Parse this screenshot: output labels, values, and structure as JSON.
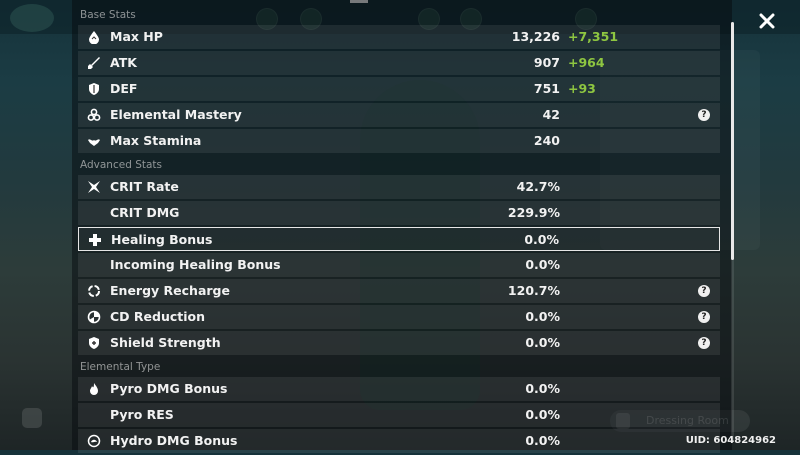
{
  "sections": [
    {
      "title": "Base Stats",
      "rows": [
        {
          "icon": "hp-drop-icon",
          "label": "Max HP",
          "value": "13,226",
          "bonus": "+7,351",
          "help": false
        },
        {
          "icon": "sword-icon",
          "label": "ATK",
          "value": "907",
          "bonus": "+964",
          "help": false
        },
        {
          "icon": "shield-icon",
          "label": "DEF",
          "value": "751",
          "bonus": "+93",
          "help": false
        },
        {
          "icon": "elemental-mastery-icon",
          "label": "Elemental Mastery",
          "value": "42",
          "bonus": "",
          "help": true
        },
        {
          "icon": "stamina-icon",
          "label": "Max Stamina",
          "value": "240",
          "bonus": "",
          "help": false
        }
      ]
    },
    {
      "title": "Advanced Stats",
      "rows": [
        {
          "icon": "crit-icon",
          "label": "CRIT Rate",
          "value": "42.7%",
          "bonus": "",
          "help": false
        },
        {
          "icon": "",
          "label": "CRIT DMG",
          "value": "229.9%",
          "bonus": "",
          "help": false
        },
        {
          "icon": "healing-cross-icon",
          "label": "Healing Bonus",
          "value": "0.0%",
          "bonus": "",
          "help": false,
          "selected": true
        },
        {
          "icon": "",
          "label": "Incoming Healing Bonus",
          "value": "0.0%",
          "bonus": "",
          "help": false
        },
        {
          "icon": "energy-recharge-icon",
          "label": "Energy Recharge",
          "value": "120.7%",
          "bonus": "",
          "help": true
        },
        {
          "icon": "cd-reduction-icon",
          "label": "CD Reduction",
          "value": "0.0%",
          "bonus": "",
          "help": true
        },
        {
          "icon": "shield-strength-icon",
          "label": "Shield Strength",
          "value": "0.0%",
          "bonus": "",
          "help": true
        }
      ]
    },
    {
      "title": "Elemental Type",
      "rows": [
        {
          "icon": "pyro-icon",
          "label": "Pyro DMG Bonus",
          "value": "0.0%",
          "bonus": "",
          "help": false
        },
        {
          "icon": "",
          "label": "Pyro RES",
          "value": "0.0%",
          "bonus": "",
          "help": false
        },
        {
          "icon": "hydro-icon",
          "label": "Hydro DMG Bonus",
          "value": "0.0%",
          "bonus": "",
          "help": false
        }
      ]
    }
  ],
  "help_glyph": "?",
  "uid": "UID: 604824962",
  "background": {
    "dressing_room_label": "Dressing Room"
  },
  "colors": {
    "bonus_green": "#8ec641",
    "selected_border": "#e6e6e6"
  }
}
